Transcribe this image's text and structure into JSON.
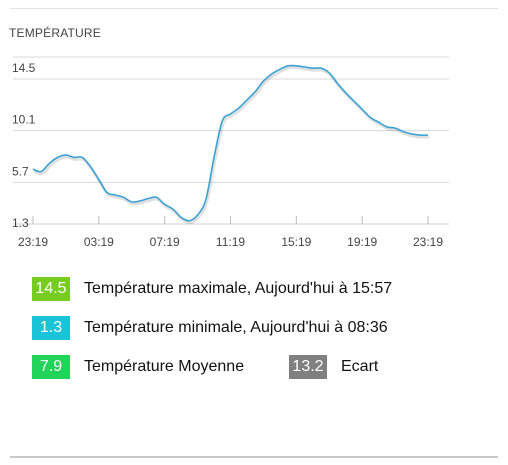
{
  "title": "TEMPÉRATURE",
  "chart_data": {
    "type": "line",
    "title": "TEMPÉRATURE",
    "xlabel": "",
    "ylabel": "",
    "y_ticks": [
      "1.3",
      "5.7",
      "10.1",
      "14.5"
    ],
    "x_ticks": [
      "23:19",
      "03:19",
      "07:19",
      "11:19",
      "15:19",
      "19:19",
      "23:19"
    ],
    "ylim": [
      1.3,
      14.5
    ],
    "grid": true,
    "line_color": "#3aa2d4",
    "series": [
      {
        "x": [
          0,
          0.5,
          1,
          1.5,
          2,
          2.5,
          3,
          3.5,
          4,
          4.5,
          5,
          5.5,
          6,
          6.5,
          7,
          7.5,
          8,
          8.5,
          9,
          9.5,
          10,
          10.5,
          11,
          11.5,
          12,
          12.5,
          13,
          13.5,
          14,
          14.5,
          15,
          15.5,
          16,
          16.5,
          17,
          17.5,
          18,
          18.5,
          19,
          19.5,
          20,
          20.5,
          21,
          21.5,
          22,
          22.5,
          23,
          23.5,
          24
        ],
        "values": [
          5.8,
          5.6,
          6.3,
          6.8,
          7.0,
          6.8,
          6.8,
          6.0,
          4.9,
          3.8,
          3.6,
          3.4,
          3.0,
          3.1,
          3.3,
          3.4,
          2.8,
          2.4,
          1.7,
          1.4,
          1.9,
          3.2,
          6.8,
          9.9,
          10.5,
          11.0,
          11.7,
          12.4,
          13.3,
          13.9,
          14.3,
          14.6,
          14.6,
          14.5,
          14.4,
          14.4,
          14.0,
          13.1,
          12.3,
          11.6,
          10.9,
          10.2,
          9.8,
          9.4,
          9.3,
          9.0,
          8.8,
          8.7,
          8.7
        ]
      }
    ]
  },
  "stats": {
    "max": {
      "value": "14.5",
      "label": "Température maximale, Aujourd'hui à 15:57",
      "color": "#77cc22"
    },
    "min": {
      "value": "1.3",
      "label": "Température minimale, Aujourd'hui à 08:36",
      "color": "#19c4d8"
    },
    "avg": {
      "value": "7.9",
      "label": "Température Moyenne",
      "color": "#22d35a"
    },
    "ecart": {
      "value": "13.2",
      "label": "Ecart",
      "color": "#808080"
    }
  }
}
